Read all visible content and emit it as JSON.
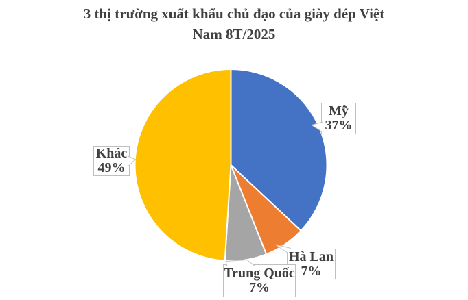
{
  "title": {
    "full": "3 thị trường xuất khẩu chủ đạo của giày dép Việt Nam 8T/2025",
    "lines": [
      "3 thị trường xuất khẩu chủ đạo của giày dép Việt",
      "Nam 8T/2025"
    ],
    "color": "#404040"
  },
  "chart_data": {
    "type": "pie",
    "title": "3 thị trường xuất khẩu chủ đạo của giày dép Việt Nam 8T/2025",
    "unit": "%",
    "direction": "clockwise",
    "start_angle_deg": 0,
    "legend": "none",
    "labels_style": "callout-boxes",
    "background": "#ffffff",
    "slices": [
      {
        "label": "Mỹ",
        "value": 37,
        "pct_label": "37%",
        "color": "#4472C4"
      },
      {
        "label": "Hà Lan",
        "value": 7,
        "pct_label": "7%",
        "color": "#ED7D31"
      },
      {
        "label": "Trung Quốc",
        "value": 7,
        "pct_label": "7%",
        "color": "#A5A5A5"
      },
      {
        "label": "Khác",
        "value": 49,
        "pct_label": "49%",
        "color": "#FFC000"
      }
    ],
    "colors": {
      "title_text": "#404040",
      "label_text": "#404040",
      "label_box_border": "#bfbfbf",
      "label_box_fill": "#ffffff",
      "slice_border": "#ffffff"
    }
  }
}
